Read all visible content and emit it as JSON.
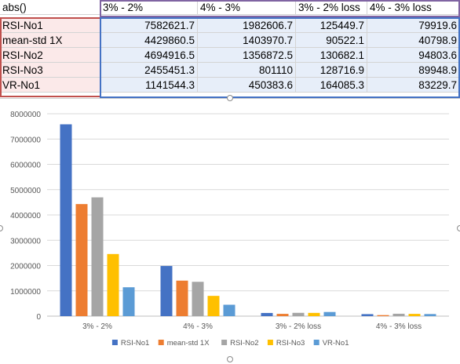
{
  "sheet": {
    "corner_label": "abs()",
    "columns": [
      "3% - 2%",
      "4% - 3%",
      "3% - 2% loss",
      "4% - 3% loss"
    ],
    "rows": [
      {
        "label": "RSI-No1",
        "values": [
          "7582621.7",
          "1982606.7",
          "125449.7",
          "79919.6"
        ]
      },
      {
        "label": "mean-std 1X",
        "values": [
          "4429860.5",
          "1403970.7",
          "90522.1",
          "40798.9"
        ]
      },
      {
        "label": "RSI-No2",
        "values": [
          "4694916.5",
          "1356872.5",
          "130682.1",
          "94803.6"
        ]
      },
      {
        "label": "RSI-No3",
        "values": [
          "2455451.3",
          "801110",
          "128716.9",
          "89948.9"
        ]
      },
      {
        "label": "VR-No1",
        "values": [
          "1141544.3",
          "450383.6",
          "164085.3",
          "83229.7"
        ]
      }
    ]
  },
  "chart_data": {
    "type": "bar",
    "categories": [
      "3% - 2%",
      "4% - 3%",
      "3% - 2% loss",
      "4% - 3% loss"
    ],
    "series": [
      {
        "name": "RSI-No1",
        "color": "#4472c4",
        "values": [
          7582621.7,
          1982606.7,
          125449.7,
          79919.6
        ]
      },
      {
        "name": "mean-std 1X",
        "color": "#ed7d31",
        "values": [
          4429860.5,
          1403970.7,
          90522.1,
          40798.9
        ]
      },
      {
        "name": "RSI-No2",
        "color": "#a5a5a5",
        "values": [
          4694916.5,
          1356872.5,
          130682.1,
          94803.6
        ]
      },
      {
        "name": "RSI-No3",
        "color": "#ffc000",
        "values": [
          2455451.3,
          801110,
          128716.9,
          89948.9
        ]
      },
      {
        "name": "VR-No1",
        "color": "#5b9bd5",
        "values": [
          1141544.3,
          450383.6,
          164085.3,
          83229.7
        ]
      }
    ],
    "yticks": [
      "0",
      "1000000",
      "2000000",
      "3000000",
      "4000000",
      "5000000",
      "6000000",
      "7000000",
      "8000000"
    ],
    "ylim": [
      0,
      8000000
    ],
    "grid": true,
    "legend_position": "bottom"
  }
}
